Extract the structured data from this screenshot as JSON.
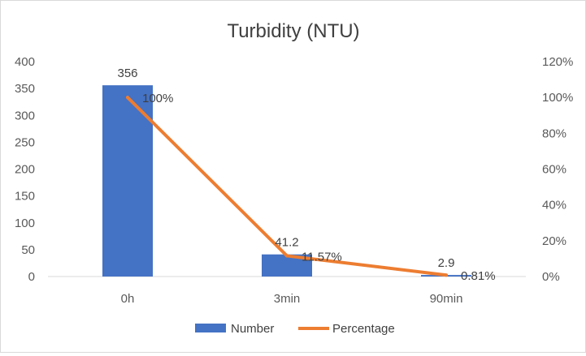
{
  "chart_data": {
    "type": "bar",
    "title": "Turbidity (NTU)",
    "categories": [
      "0h",
      "3min",
      "90min"
    ],
    "series": [
      {
        "name": "Number",
        "type": "bar",
        "axis": "left",
        "values": [
          356,
          41.2,
          2.9
        ],
        "labels": [
          "356",
          "41.2",
          "2.9"
        ],
        "color": "#4472C4"
      },
      {
        "name": "Percentage",
        "type": "line",
        "axis": "right",
        "values": [
          100,
          11.57,
          0.81
        ],
        "labels": [
          "100%",
          "11.57%",
          "0.81%"
        ],
        "color": "#ED7D31"
      }
    ],
    "ylim": [
      0,
      400
    ],
    "yticks": [
      "0",
      "50",
      "100",
      "150",
      "200",
      "250",
      "300",
      "350",
      "400"
    ],
    "y2lim": [
      0,
      120
    ],
    "y2ticks": [
      "0%",
      "20%",
      "40%",
      "60%",
      "80%",
      "100%",
      "120%"
    ],
    "grid": false,
    "legend": "bottom"
  }
}
